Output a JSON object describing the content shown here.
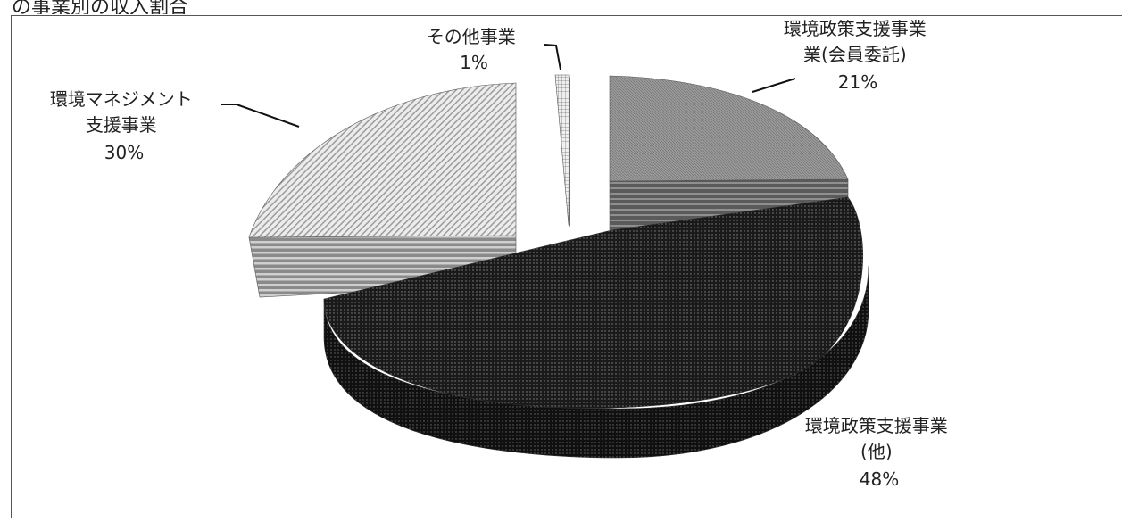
{
  "chart_data": {
    "type": "pie",
    "title": "",
    "categories": [
      "その他事業",
      "環境政策支援事業(会員委託)",
      "環境政策支援事業(他)",
      "環境マネジメント支援事業"
    ],
    "values": [
      1,
      21,
      48,
      30
    ],
    "unit": "%",
    "labels": [
      {
        "lines": [
          "その他事業",
          "1%"
        ]
      },
      {
        "lines": [
          "環境政策支援事業",
          "業(会員委託)",
          "21%"
        ]
      },
      {
        "lines": [
          "環境政策支援事業",
          "(他)",
          "48%"
        ]
      },
      {
        "lines": [
          "環境マネジメント",
          "支援事業",
          "30%"
        ]
      }
    ],
    "colors": {
      "other": "#cfcfcf",
      "member": "#8a8a8a",
      "policy_other": "#1a1a1a",
      "management": "#d6d6d6"
    },
    "exploded": true,
    "grid": false,
    "legend": "none"
  },
  "header": {
    "clipped_title": "の事業別の収入割合"
  }
}
